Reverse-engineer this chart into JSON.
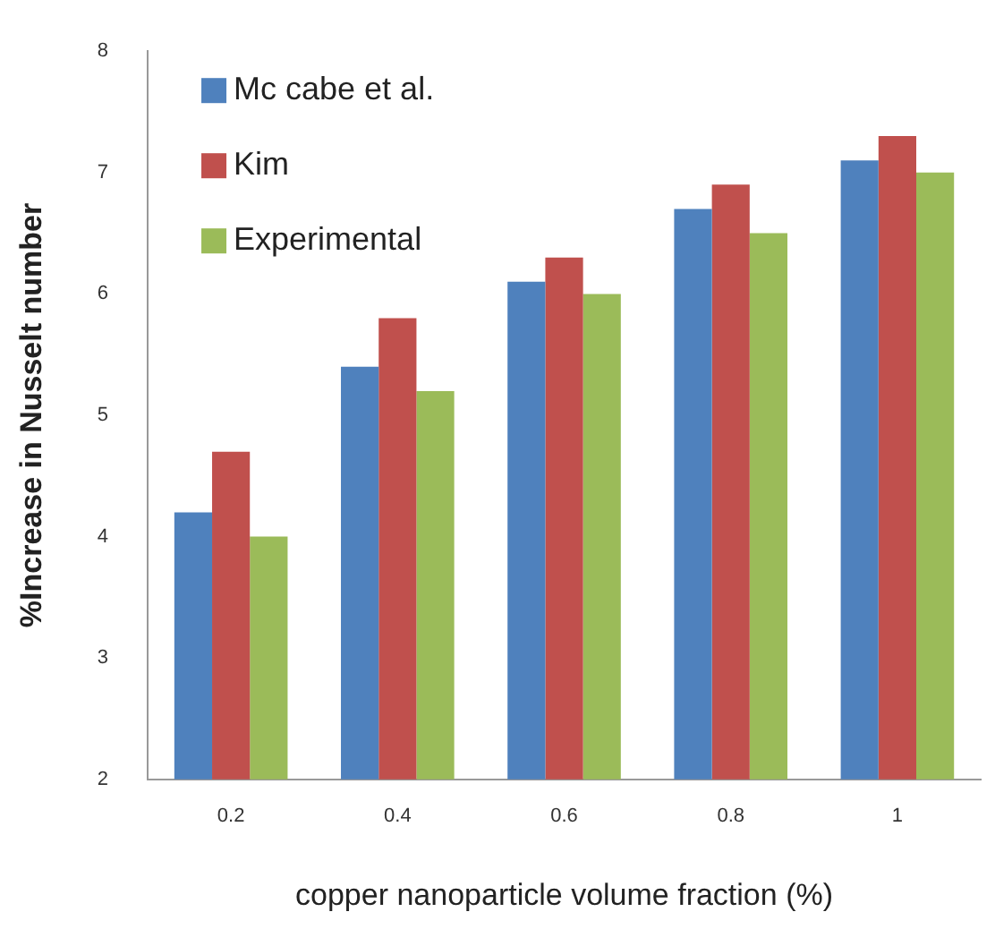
{
  "chart_data": {
    "type": "bar",
    "xlabel": "copper nanoparticle volume fraction (%)",
    "ylabel": "%Increase in Nusselt number",
    "categories": [
      "0.2",
      "0.4",
      "0.6",
      "0.8",
      "1"
    ],
    "series": [
      {
        "name": "Mc cabe et al.",
        "color": "#4f81bd",
        "values": [
          4.2,
          5.4,
          6.1,
          6.7,
          7.1
        ]
      },
      {
        "name": "Kim",
        "color": "#c0504d",
        "values": [
          4.7,
          5.8,
          6.3,
          6.9,
          7.3
        ]
      },
      {
        "name": "Experimental",
        "color": "#9bbb59",
        "values": [
          4.0,
          5.2,
          6.0,
          6.5,
          7.0
        ]
      }
    ],
    "ylim": [
      2,
      8
    ],
    "yticks": [
      2,
      3,
      4,
      5,
      6,
      7,
      8
    ],
    "grid": false,
    "legend": "top left"
  }
}
